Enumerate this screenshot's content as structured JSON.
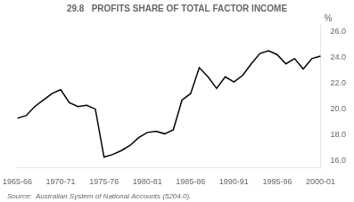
{
  "chart_data": {
    "type": "line",
    "title": "29.8   PROFITS SHARE OF TOTAL FACTOR INCOME",
    "ylabel": "%",
    "annotations": [
      "Source:  Australian System of National Accounts (5204.0)."
    ],
    "categories": [
      "1965-66",
      null,
      null,
      null,
      null,
      "1970-71",
      null,
      null,
      null,
      null,
      "1975-76",
      null,
      null,
      null,
      null,
      "1980-81",
      null,
      null,
      null,
      null,
      "1985-86",
      null,
      null,
      null,
      null,
      "1990-91",
      null,
      null,
      null,
      null,
      "1995-96",
      null,
      null,
      null,
      null,
      "2000-01"
    ],
    "values": [
      19.3,
      19.5,
      20.2,
      20.7,
      21.2,
      21.5,
      20.5,
      20.2,
      20.3,
      20.0,
      16.3,
      16.5,
      16.8,
      17.2,
      17.8,
      18.2,
      18.3,
      18.1,
      18.4,
      20.7,
      21.2,
      23.2,
      22.5,
      21.6,
      22.5,
      22.1,
      22.6,
      23.5,
      24.3,
      24.5,
      24.2,
      23.5,
      23.9,
      23.1,
      23.9,
      24.1
    ],
    "color": "#000000",
    "ylim": [
      15.5,
      26.5
    ],
    "yticks": [
      {
        "value": 16,
        "label": "16.0"
      },
      {
        "value": 18,
        "label": "18.0"
      },
      {
        "value": 20,
        "label": "20.0"
      },
      {
        "value": 22,
        "label": "22.0"
      },
      {
        "value": 24,
        "label": "24.0"
      },
      {
        "value": 26,
        "label": "26.0"
      }
    ],
    "grid": false
  }
}
